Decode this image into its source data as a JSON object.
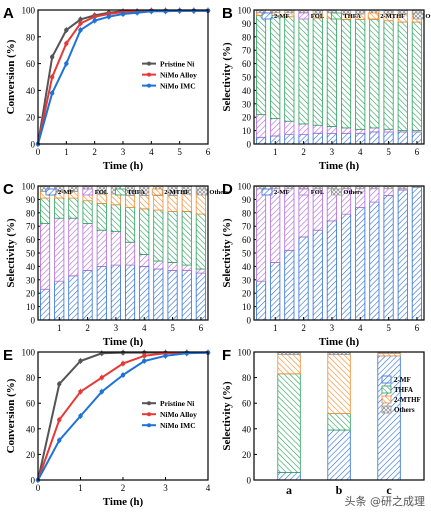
{
  "colors": {
    "blue": "#2f6fd6",
    "purple": "#b06ad8",
    "green": "#2aa05a",
    "orange": "#f08a2a",
    "gray": "#9a9a9a",
    "line_black": "#555555",
    "line_red": "#e53935",
    "line_blue": "#1e73d8"
  },
  "watermark": "头条 @研之成理",
  "chart_data": [
    {
      "panel": "A",
      "type": "line",
      "xlabel": "Time (h)",
      "ylabel": "Conversion (%)",
      "xlim": [
        0,
        6
      ],
      "ylim": [
        0,
        100
      ],
      "xticks": [
        0,
        1,
        2,
        3,
        4,
        5,
        6
      ],
      "yticks": [
        0,
        20,
        40,
        60,
        80,
        100
      ],
      "legend": "center-right",
      "series": [
        {
          "name": "Pristine Ni",
          "color": "#555555",
          "x": [
            0,
            0.5,
            1,
            1.5,
            2,
            2.5,
            3,
            3.5,
            4,
            4.5,
            5,
            5.5,
            6
          ],
          "y": [
            0,
            65,
            85,
            93,
            96,
            98,
            99,
            99,
            99.5,
            99.5,
            99.5,
            99.5,
            99.5
          ]
        },
        {
          "name": "NiMo Alloy",
          "color": "#e53935",
          "x": [
            0,
            0.5,
            1,
            1.5,
            2,
            2.5,
            3,
            3.5,
            4,
            4.5,
            5,
            5.5,
            6
          ],
          "y": [
            0,
            50,
            75,
            90,
            95,
            97,
            98.5,
            99,
            99.5,
            99.5,
            99.5,
            99.5,
            99.5
          ]
        },
        {
          "name": "NiMo IMC",
          "color": "#1e73d8",
          "x": [
            0,
            0.5,
            1,
            1.5,
            2,
            2.5,
            3,
            3.5,
            4,
            4.5,
            5,
            5.5,
            6
          ],
          "y": [
            0,
            38,
            60,
            85,
            92,
            95,
            97,
            98,
            99,
            99,
            99.5,
            99.5,
            99.5
          ]
        }
      ]
    },
    {
      "panel": "B",
      "type": "bar",
      "stacked": true,
      "xlabel": "Time (h)",
      "ylabel": "Selectivity (%)",
      "ylim": [
        0,
        100
      ],
      "xticks": [
        1,
        2,
        3,
        4,
        5,
        6
      ],
      "yticks": [
        0,
        10,
        20,
        30,
        40,
        50,
        60,
        70,
        80,
        90,
        100
      ],
      "legend": "top",
      "categories": [
        0.5,
        1,
        1.5,
        2,
        2.5,
        3,
        3.5,
        4,
        4.5,
        5,
        5.5,
        6
      ],
      "series": [
        {
          "name": "2-MF",
          "color": "#2f6fd6",
          "values": [
            5,
            6,
            7,
            7,
            8,
            8,
            8,
            8,
            9,
            9,
            9,
            9
          ]
        },
        {
          "name": "FOL",
          "color": "#b06ad8",
          "values": [
            17,
            13,
            10,
            8,
            6,
            5,
            4,
            3,
            3,
            2,
            1,
            1
          ]
        },
        {
          "name": "THFA",
          "color": "#2aa05a",
          "values": [
            74,
            77,
            78,
            80,
            80,
            81,
            81,
            82,
            81,
            81,
            81,
            81
          ]
        },
        {
          "name": "2-MTHF",
          "color": "#f08a2a",
          "values": [
            2,
            2,
            3,
            3,
            3,
            4,
            4,
            4,
            4,
            5,
            6,
            6
          ]
        },
        {
          "name": "Others",
          "color": "#9a9a9a",
          "values": [
            2,
            2,
            2,
            2,
            3,
            2,
            3,
            3,
            3,
            3,
            3,
            3
          ]
        }
      ]
    },
    {
      "panel": "C",
      "type": "bar",
      "stacked": true,
      "xlabel": "Time (h)",
      "ylabel": "Selectivity (%)",
      "ylim": [
        0,
        100
      ],
      "xticks": [
        1,
        2,
        3,
        4,
        5,
        6
      ],
      "yticks": [
        0,
        10,
        20,
        30,
        40,
        50,
        60,
        70,
        80,
        90,
        100
      ],
      "legend": "top",
      "categories": [
        0.5,
        1,
        1.5,
        2,
        2.5,
        3,
        3.5,
        4,
        4.5,
        5,
        5.5,
        6
      ],
      "series": [
        {
          "name": "2-MF",
          "color": "#2f6fd6",
          "values": [
            23,
            29,
            33,
            37,
            40,
            41,
            41,
            40,
            38,
            37,
            37,
            35
          ]
        },
        {
          "name": "FOL",
          "color": "#b06ad8",
          "values": [
            49,
            47,
            43,
            35,
            27,
            25,
            17,
            9,
            6,
            6,
            4,
            3
          ]
        },
        {
          "name": "THFA",
          "color": "#2aa05a",
          "values": [
            19,
            15,
            15,
            17,
            20,
            20,
            26,
            34,
            38,
            38,
            40,
            41
          ]
        },
        {
          "name": "2-MTHF",
          "color": "#f08a2a",
          "values": [
            5,
            5,
            5,
            6,
            7,
            8,
            9,
            10,
            11,
            12,
            13,
            15
          ]
        },
        {
          "name": "Others",
          "color": "#9a9a9a",
          "values": [
            4,
            4,
            4,
            5,
            6,
            6,
            7,
            7,
            7,
            7,
            6,
            6
          ]
        }
      ]
    },
    {
      "panel": "D",
      "type": "bar",
      "stacked": true,
      "xlabel": "Time (h)",
      "ylabel": "Selectivity (%)",
      "ylim": [
        0,
        100
      ],
      "xticks": [
        1,
        2,
        3,
        4,
        5,
        6
      ],
      "yticks": [
        0,
        10,
        20,
        30,
        40,
        50,
        60,
        70,
        80,
        90,
        100
      ],
      "legend": "top",
      "categories": [
        0.5,
        1,
        1.5,
        2,
        2.5,
        3,
        3.5,
        4,
        4.5,
        5,
        5.5,
        6
      ],
      "series": [
        {
          "name": "2-MF",
          "color": "#2f6fd6",
          "values": [
            29,
            43,
            52,
            62,
            67,
            74,
            79,
            84,
            88,
            93,
            97,
            99
          ]
        },
        {
          "name": "FOL",
          "color": "#b06ad8",
          "values": [
            69,
            55,
            46,
            36,
            31,
            24,
            19,
            14,
            10,
            5,
            1,
            0
          ]
        },
        {
          "name": "Others",
          "color": "#9a9a9a",
          "values": [
            2,
            2,
            2,
            2,
            2,
            2,
            2,
            2,
            2,
            2,
            2,
            1
          ]
        }
      ]
    },
    {
      "panel": "E",
      "type": "line",
      "xlabel": "Time (h)",
      "ylabel": "Conversion (%)",
      "xlim": [
        0,
        4
      ],
      "ylim": [
        0,
        100
      ],
      "xticks": [
        0,
        1,
        2,
        3,
        4
      ],
      "yticks": [
        0,
        20,
        40,
        60,
        80,
        100
      ],
      "legend": "center-right",
      "series": [
        {
          "name": "Pristine Ni",
          "color": "#555555",
          "x": [
            0,
            0.5,
            1,
            1.5,
            2,
            2.5,
            3,
            3.5,
            4
          ],
          "y": [
            0,
            75,
            93,
            99,
            99.5,
            99.5,
            99.5,
            99.5,
            99.5
          ]
        },
        {
          "name": "NiMo Alloy",
          "color": "#e53935",
          "x": [
            0,
            0.5,
            1,
            1.5,
            2,
            2.5,
            3,
            3.5,
            4
          ],
          "y": [
            0,
            47,
            69,
            80,
            91,
            97,
            99,
            99.5,
            99.5
          ]
        },
        {
          "name": "NiMo IMC",
          "color": "#1e73d8",
          "x": [
            0,
            0.5,
            1,
            1.5,
            2,
            2.5,
            3,
            3.5,
            4
          ],
          "y": [
            0,
            31,
            50,
            69,
            82,
            93,
            97,
            99,
            99.5
          ]
        }
      ]
    },
    {
      "panel": "F",
      "type": "bar",
      "stacked": true,
      "ylabel": "Selectivity (%)",
      "ylim": [
        0,
        100
      ],
      "yticks": [
        0,
        20,
        40,
        60,
        80,
        100
      ],
      "legend": "right",
      "categories": [
        "a",
        "b",
        "c"
      ],
      "series": [
        {
          "name": "2-MF",
          "color": "#2f6fd6",
          "values": [
            6,
            39,
            97
          ]
        },
        {
          "name": "THFA",
          "color": "#2aa05a",
          "values": [
            77,
            13,
            0
          ]
        },
        {
          "name": "2-MTHF",
          "color": "#f08a2a",
          "values": [
            15,
            46,
            2
          ]
        },
        {
          "name": "Others",
          "color": "#9a9a9a",
          "values": [
            2,
            2,
            1
          ]
        }
      ]
    }
  ]
}
